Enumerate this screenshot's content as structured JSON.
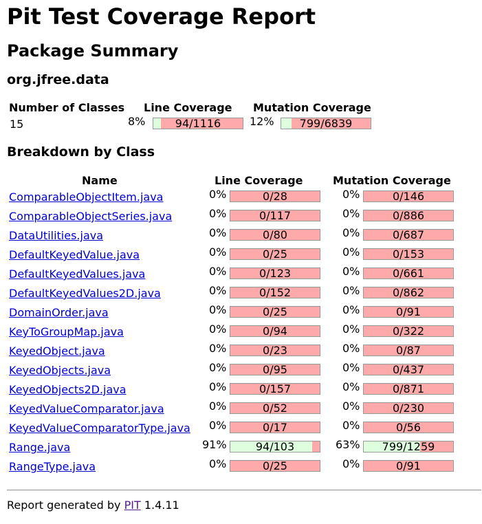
{
  "title": "Pit Test Coverage Report",
  "subtitle": "Package Summary",
  "package_name": "org.jfree.data",
  "summary": {
    "headers": {
      "classes": "Number of Classes",
      "line": "Line Coverage",
      "mutation": "Mutation Coverage"
    },
    "classes": "15",
    "line": {
      "pct": "8%",
      "label": "94/1116",
      "fraction": 0.0842
    },
    "mutation": {
      "pct": "12%",
      "label": "799/6839",
      "fraction": 0.1168
    }
  },
  "breakdown_title": "Breakdown by Class",
  "table_headers": {
    "name": "Name",
    "line": "Line Coverage",
    "mutation": "Mutation Coverage"
  },
  "rows": [
    {
      "name": "ComparableObjectItem.java",
      "line_pct": "0%",
      "line_label": "0/28",
      "line_frac": 0,
      "mut_pct": "0%",
      "mut_label": "0/146",
      "mut_frac": 0
    },
    {
      "name": "ComparableObjectSeries.java",
      "line_pct": "0%",
      "line_label": "0/117",
      "line_frac": 0,
      "mut_pct": "0%",
      "mut_label": "0/886",
      "mut_frac": 0
    },
    {
      "name": "DataUtilities.java",
      "line_pct": "0%",
      "line_label": "0/80",
      "line_frac": 0,
      "mut_pct": "0%",
      "mut_label": "0/687",
      "mut_frac": 0
    },
    {
      "name": "DefaultKeyedValue.java",
      "line_pct": "0%",
      "line_label": "0/25",
      "line_frac": 0,
      "mut_pct": "0%",
      "mut_label": "0/153",
      "mut_frac": 0
    },
    {
      "name": "DefaultKeyedValues.java",
      "line_pct": "0%",
      "line_label": "0/123",
      "line_frac": 0,
      "mut_pct": "0%",
      "mut_label": "0/661",
      "mut_frac": 0
    },
    {
      "name": "DefaultKeyedValues2D.java",
      "line_pct": "0%",
      "line_label": "0/152",
      "line_frac": 0,
      "mut_pct": "0%",
      "mut_label": "0/862",
      "mut_frac": 0
    },
    {
      "name": "DomainOrder.java",
      "line_pct": "0%",
      "line_label": "0/25",
      "line_frac": 0,
      "mut_pct": "0%",
      "mut_label": "0/91",
      "mut_frac": 0
    },
    {
      "name": "KeyToGroupMap.java",
      "line_pct": "0%",
      "line_label": "0/94",
      "line_frac": 0,
      "mut_pct": "0%",
      "mut_label": "0/322",
      "mut_frac": 0
    },
    {
      "name": "KeyedObject.java",
      "line_pct": "0%",
      "line_label": "0/23",
      "line_frac": 0,
      "mut_pct": "0%",
      "mut_label": "0/87",
      "mut_frac": 0
    },
    {
      "name": "KeyedObjects.java",
      "line_pct": "0%",
      "line_label": "0/95",
      "line_frac": 0,
      "mut_pct": "0%",
      "mut_label": "0/437",
      "mut_frac": 0
    },
    {
      "name": "KeyedObjects2D.java",
      "line_pct": "0%",
      "line_label": "0/157",
      "line_frac": 0,
      "mut_pct": "0%",
      "mut_label": "0/871",
      "mut_frac": 0
    },
    {
      "name": "KeyedValueComparator.java",
      "line_pct": "0%",
      "line_label": "0/52",
      "line_frac": 0,
      "mut_pct": "0%",
      "mut_label": "0/230",
      "mut_frac": 0
    },
    {
      "name": "KeyedValueComparatorType.java",
      "line_pct": "0%",
      "line_label": "0/17",
      "line_frac": 0,
      "mut_pct": "0%",
      "mut_label": "0/56",
      "mut_frac": 0
    },
    {
      "name": "Range.java",
      "line_pct": "91%",
      "line_label": "94/103",
      "line_frac": 0.9126,
      "mut_pct": "63%",
      "mut_label": "799/1259",
      "mut_frac": 0.6346
    },
    {
      "name": "RangeType.java",
      "line_pct": "0%",
      "line_label": "0/25",
      "line_frac": 0,
      "mut_pct": "0%",
      "mut_label": "0/91",
      "mut_frac": 0
    }
  ],
  "footer": {
    "prefix": "Report generated by",
    "link": "PIT",
    "version": "1.4.11"
  },
  "colors": {
    "covered": "#ddffdd",
    "uncovered": "#ffaaaa",
    "link": "#0000cc",
    "visited_link": "#551a8b"
  }
}
